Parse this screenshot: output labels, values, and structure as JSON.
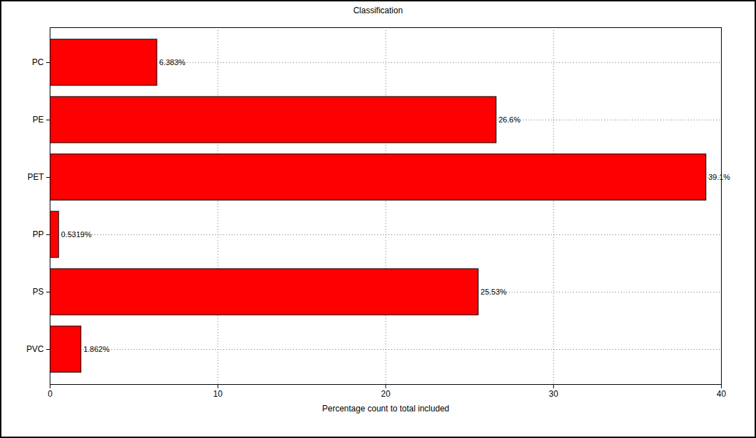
{
  "chart_data": {
    "type": "bar",
    "orientation": "horizontal",
    "title": "Classification",
    "x_label": "Percentage count to total included",
    "categories": [
      "PC",
      "PE",
      "PET",
      "PP",
      "PS",
      "PVC"
    ],
    "values": [
      6.383,
      26.6,
      39.1,
      0.5319,
      25.53,
      1.862
    ],
    "value_labels": [
      "6.383%",
      "26.6%",
      "39.1%",
      "0.5319%",
      "25.53%",
      "1.862%"
    ],
    "data_labels": true,
    "color": "#ff0000",
    "xlim": [
      0,
      40
    ],
    "xticks": [
      0,
      10,
      20,
      30,
      40
    ],
    "grid": true
  }
}
